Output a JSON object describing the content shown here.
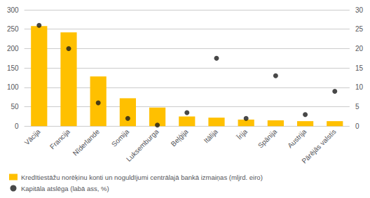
{
  "chart_data": {
    "type": "bar",
    "categories": [
      "Vācija",
      "Francija",
      "Nīderlande",
      "Somija",
      "Luksemburga",
      "Beļģija",
      "Itālija",
      "Īrija",
      "Spānija",
      "Austrija",
      "Pārējās valstis"
    ],
    "series": [
      {
        "name": "Kredītiestāžu norēķinu konti un noguldījumi centrālajā bankā izmaiņas (mljrd. eiro)",
        "type": "bar",
        "color": "#FFC000",
        "values": [
          258,
          242,
          128,
          72,
          48,
          25,
          22,
          17,
          15,
          13,
          13
        ]
      },
      {
        "name": "Kapitāla atslēga (labā ass, %)",
        "type": "scatter",
        "axis": "y2",
        "color": "#1a1a1a",
        "marker": "circle",
        "values": [
          26,
          20,
          6,
          2,
          0.3,
          3.5,
          17.5,
          2,
          13,
          3,
          9
        ]
      }
    ],
    "ylim": [
      0,
      300
    ],
    "yticks": [
      0,
      50,
      100,
      150,
      200,
      250,
      300
    ],
    "y2lim": [
      0,
      30
    ],
    "y2ticks": [
      0,
      5,
      10,
      15,
      20,
      25,
      30
    ],
    "grid": true,
    "legend": "bottom left"
  }
}
